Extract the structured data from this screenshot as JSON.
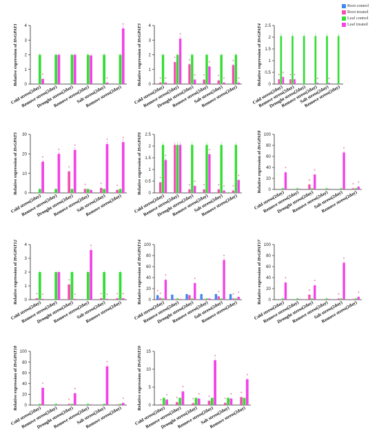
{
  "colors": {
    "root_control": "#3f86f0",
    "root_treated": "#f24fb0",
    "leaf_control": "#33dd33",
    "leaf_treated": "#f342e6",
    "star": "#d0357d",
    "axis": "#222222"
  },
  "legend": {
    "items": [
      {
        "label": "Root control",
        "color": "#3f86f0"
      },
      {
        "label": "Root treated",
        "color": "#f24fb0"
      },
      {
        "label": "Leaf control",
        "color": "#33dd33"
      },
      {
        "label": "Leaf treated",
        "color": "#f342e6"
      }
    ]
  },
  "chart_data": [
    {
      "type": "bar",
      "ylabel_prefix": "Relative expression of ",
      "gene": "HvGPAT1",
      "categories": [
        "Cold stress(2day)",
        "Remove stress(2day)",
        "Drought stress(2day)",
        "Remove stress(2day)",
        "Salt stress(2day)",
        "Remove stress(2day)"
      ],
      "ylim": [
        0,
        4
      ],
      "yticks": [
        0,
        1,
        2,
        3,
        4
      ],
      "series": [
        {
          "values": [
            0,
            0,
            0,
            0,
            0,
            0
          ],
          "star": [
            false,
            false,
            false,
            false,
            false,
            false
          ]
        },
        {
          "values": [
            0,
            0,
            0,
            0,
            0,
            0
          ],
          "star": [
            false,
            false,
            false,
            false,
            false,
            false
          ]
        },
        {
          "values": [
            2,
            2,
            2,
            2,
            2,
            2
          ],
          "star": [
            false,
            false,
            false,
            false,
            false,
            false
          ]
        },
        {
          "values": [
            0.35,
            2.0,
            2.0,
            1.95,
            0.1,
            3.8
          ],
          "star": [
            true,
            false,
            false,
            false,
            true,
            true
          ]
        }
      ]
    },
    {
      "type": "bar",
      "ylabel_prefix": "Relative expression of ",
      "gene": "HvGPAT3",
      "categories": [
        "Cold stress(2day)",
        "Remove stress(2day)",
        "Drought stress(2day)",
        "Remove stress(2day)",
        "Salt stress(2day)",
        "Remove stress(2day)"
      ],
      "ylim": [
        0,
        4
      ],
      "yticks": [
        0,
        1,
        2,
        3,
        4
      ],
      "series": [
        {
          "values": [
            0,
            0,
            0,
            0,
            0,
            0
          ],
          "star": [
            false,
            false,
            false,
            false,
            false,
            false
          ]
        },
        {
          "values": [
            0.1,
            1.5,
            1.35,
            0.3,
            0.25,
            1.3
          ],
          "star": [
            true,
            true,
            true,
            true,
            true,
            true
          ]
        },
        {
          "values": [
            2,
            2,
            2,
            2,
            2,
            2
          ],
          "star": [
            false,
            false,
            false,
            false,
            false,
            false
          ]
        },
        {
          "values": [
            0.1,
            3.1,
            0.3,
            1.2,
            0.1,
            0.1
          ],
          "star": [
            true,
            true,
            true,
            true,
            true,
            true
          ]
        }
      ]
    },
    {
      "type": "bar",
      "ylabel_prefix": "Relative expression of ",
      "gene": "HvGPAT4",
      "categories": [
        "Cold stress(2day)",
        "Remove stress(2day)",
        "Drought stress(2day)",
        "Remove stress(2day)",
        "Salt stress(2day)",
        "Remove stress(2day)"
      ],
      "ylim": [
        0,
        2.5
      ],
      "yticks": [
        0,
        0.5,
        1.0,
        1.5,
        2.0,
        2.5
      ],
      "series": [
        {
          "values": [
            0,
            0,
            0,
            0,
            0,
            0
          ],
          "star": [
            false,
            false,
            false,
            false,
            false,
            false
          ]
        },
        {
          "values": [
            0.2,
            0.2,
            0,
            0,
            0,
            0
          ],
          "star": [
            true,
            true,
            false,
            false,
            false,
            false
          ]
        },
        {
          "values": [
            2.05,
            2.05,
            2.05,
            2.05,
            2.05,
            2.05
          ],
          "star": [
            false,
            false,
            false,
            false,
            false,
            false
          ]
        },
        {
          "values": [
            0.3,
            0.2,
            0,
            0.05,
            0.05,
            0
          ],
          "star": [
            true,
            true,
            false,
            true,
            true,
            false
          ]
        }
      ]
    },
    {
      "type": "bar",
      "ylabel_prefix": "Relative expression of ",
      "gene": "HvGPAT5",
      "categories": [
        "Cold stress(2day)",
        "Remove stress(2day)",
        "Drought stress(2day)",
        "Remove stress(2day)",
        "Salt stress(2day)",
        "Remove stress(2day)"
      ],
      "ylim": [
        0,
        30
      ],
      "yticks": [
        0,
        10,
        20,
        30
      ],
      "series": [
        {
          "values": [
            0,
            0,
            0,
            0,
            0,
            0
          ],
          "star": [
            false,
            false,
            false,
            false,
            false,
            false
          ]
        },
        {
          "values": [
            0,
            0,
            11,
            2,
            2.5,
            1.5
          ],
          "star": [
            false,
            false,
            true,
            true,
            true,
            true
          ]
        },
        {
          "values": [
            2,
            2,
            2,
            2,
            2,
            2
          ],
          "star": [
            false,
            false,
            false,
            false,
            false,
            false
          ]
        },
        {
          "values": [
            16,
            20,
            22,
            1.5,
            25,
            26
          ],
          "star": [
            true,
            true,
            true,
            false,
            true,
            true
          ]
        }
      ]
    },
    {
      "type": "bar",
      "ylabel_prefix": "Relative expression of ",
      "gene": "HvGPAT6",
      "categories": [
        "Cold stress(2day)",
        "Remove stress(2day)",
        "Drought stress(2day)",
        "Remove stress(2day)",
        "Salt stress(2day)",
        "Remove stress(2day)"
      ],
      "ylim": [
        0,
        2.5
      ],
      "yticks": [
        0,
        0.5,
        1.0,
        1.5,
        2.0,
        2.5
      ],
      "series": [
        {
          "values": [
            0,
            0,
            0,
            0,
            0,
            0
          ],
          "star": [
            false,
            false,
            false,
            false,
            false,
            false
          ]
        },
        {
          "values": [
            0.45,
            2.05,
            0.15,
            0.15,
            0.15,
            0.1
          ],
          "star": [
            true,
            false,
            true,
            true,
            true,
            true
          ]
        },
        {
          "values": [
            2.05,
            2.05,
            2.05,
            2.05,
            2.05,
            2.05
          ],
          "star": [
            false,
            false,
            false,
            false,
            false,
            false
          ]
        },
        {
          "values": [
            1.4,
            2.05,
            0.3,
            1.65,
            0.1,
            0.55
          ],
          "star": [
            true,
            false,
            true,
            true,
            true,
            true
          ]
        }
      ]
    },
    {
      "type": "bar",
      "ylabel_prefix": "Relative expression of ",
      "gene": "HvGPAT8",
      "categories": [
        "Cold stress(2day)",
        "Remove stress(2day)",
        "Drought stress(2day)",
        "Remove stress(2day)",
        "Salt stress(2day)",
        "Remove stress(2day)"
      ],
      "ylim": [
        0,
        100
      ],
      "yticks": [
        0,
        20,
        40,
        60,
        80,
        100
      ],
      "series": [
        {
          "values": [
            0,
            0,
            0,
            0,
            0,
            0
          ],
          "star": [
            false,
            false,
            false,
            false,
            false,
            false
          ]
        },
        {
          "values": [
            0,
            0,
            9,
            0,
            0,
            2
          ],
          "star": [
            false,
            false,
            true,
            false,
            false,
            true
          ]
        },
        {
          "values": [
            2,
            2,
            2,
            2,
            2,
            2
          ],
          "star": [
            false,
            false,
            false,
            false,
            false,
            false
          ]
        },
        {
          "values": [
            31,
            1,
            27,
            1,
            67,
            5
          ],
          "star": [
            true,
            false,
            true,
            false,
            true,
            true
          ]
        }
      ]
    },
    {
      "type": "bar",
      "ylabel_prefix": "Relative expression of ",
      "gene": "HvGPAT12",
      "categories": [
        "Cold stress(2day)",
        "Remove stress(2day)",
        "Drought stress(2day)",
        "Remove stress(2day)",
        "Salt stress(2day)",
        "Remove stress(2day)"
      ],
      "ylim": [
        0,
        4
      ],
      "yticks": [
        0,
        1,
        2,
        3,
        4
      ],
      "series": [
        {
          "values": [
            0,
            0,
            0,
            0,
            0,
            0
          ],
          "star": [
            false,
            false,
            false,
            false,
            false,
            false
          ]
        },
        {
          "values": [
            0.1,
            0,
            1.1,
            0,
            0.1,
            0.1
          ],
          "star": [
            true,
            false,
            true,
            false,
            true,
            true
          ]
        },
        {
          "values": [
            2,
            2,
            2,
            2,
            2,
            2
          ],
          "star": [
            false,
            false,
            false,
            false,
            false,
            false
          ]
        },
        {
          "values": [
            0.05,
            2.0,
            0.05,
            3.6,
            0.05,
            0.1
          ],
          "star": [
            true,
            false,
            true,
            true,
            true,
            true
          ]
        }
      ]
    },
    {
      "type": "bar",
      "ylabel_prefix": "Relative expression of ",
      "gene": "HvGPAT14",
      "categories": [
        "Cold stress(2day)",
        "Remove stress(2day)",
        "Drought stress(2day)",
        "Remove stress(2day)",
        "Salt stress(2day)",
        "Remove stress(2day)"
      ],
      "ylim": [
        0,
        100
      ],
      "yticks": [
        0,
        20,
        40,
        60,
        80,
        100
      ],
      "series": [
        {
          "values": [
            8,
            9,
            10,
            10,
            10,
            10
          ],
          "star": [
            true,
            false,
            false,
            false,
            false,
            false
          ]
        },
        {
          "values": [
            3,
            1,
            8,
            1,
            6,
            2
          ],
          "star": [
            true,
            false,
            false,
            false,
            true,
            true
          ]
        },
        {
          "values": [
            2,
            2,
            2,
            2,
            2,
            2
          ],
          "star": [
            false,
            false,
            false,
            false,
            false,
            false
          ]
        },
        {
          "values": [
            36,
            1,
            30,
            2,
            72,
            5
          ],
          "star": [
            true,
            false,
            true,
            false,
            true,
            true
          ]
        }
      ]
    },
    {
      "type": "bar",
      "ylabel_prefix": "Relative expression of ",
      "gene": "HvGPAT17",
      "categories": [
        "Cold stress(2day)",
        "Remove stress(2day)",
        "Drought stress(2day)",
        "Remove stress(2day)",
        "Salt stress(2day)",
        "Remove stress(2day)"
      ],
      "ylim": [
        0,
        100
      ],
      "yticks": [
        0,
        20,
        40,
        60,
        80,
        100
      ],
      "series": [
        {
          "values": [
            0,
            0,
            0,
            0,
            0,
            0
          ],
          "star": [
            false,
            false,
            false,
            false,
            false,
            false
          ]
        },
        {
          "values": [
            0,
            0,
            9,
            0,
            2,
            1
          ],
          "star": [
            false,
            false,
            true,
            false,
            true,
            false
          ]
        },
        {
          "values": [
            2,
            2,
            2,
            2,
            2,
            2
          ],
          "star": [
            false,
            false,
            false,
            false,
            false,
            false
          ]
        },
        {
          "values": [
            31,
            1,
            26,
            1,
            67,
            5
          ],
          "star": [
            true,
            false,
            true,
            false,
            true,
            true
          ]
        }
      ]
    },
    {
      "type": "bar",
      "ylabel_prefix": "Relative expression of ",
      "gene": "HvGPAT18",
      "categories": [
        "Cold stress(2day)",
        "Remove stress(2day)",
        "Drought stress(2day)",
        "Remove stress(2day)",
        "Salt stress(2day)",
        "Remove stress(2day)"
      ],
      "ylim": [
        0,
        100
      ],
      "yticks": [
        0,
        20,
        40,
        60,
        80,
        100
      ],
      "series": [
        {
          "values": [
            0,
            0,
            0,
            0,
            0,
            0
          ],
          "star": [
            false,
            false,
            false,
            false,
            false,
            false
          ]
        },
        {
          "values": [
            0,
            0,
            2,
            0,
            0,
            1
          ],
          "star": [
            false,
            false,
            true,
            false,
            false,
            false
          ]
        },
        {
          "values": [
            2,
            2,
            2,
            2,
            2,
            2
          ],
          "star": [
            false,
            false,
            false,
            false,
            false,
            false
          ]
        },
        {
          "values": [
            32,
            1,
            22,
            1,
            72,
            4
          ],
          "star": [
            true,
            false,
            true,
            false,
            true,
            true
          ]
        }
      ]
    },
    {
      "type": "bar",
      "ylabel_prefix": "Relative expression of ",
      "gene": "HvGPAT20",
      "categories": [
        "Cold stress(2day)",
        "Remove stress(2day)",
        "Drought stress(2day)",
        "Remove stress(2day)",
        "Salt stress(2day)",
        "Remove stress(2day)"
      ],
      "ylim": [
        0,
        15
      ],
      "yticks": [
        0,
        5,
        10,
        15
      ],
      "series": [
        {
          "values": [
            0,
            0,
            0,
            0,
            0,
            0
          ],
          "star": [
            false,
            false,
            false,
            false,
            false,
            false
          ]
        },
        {
          "values": [
            0.2,
            0.8,
            0.5,
            1.2,
            0.6,
            2.2
          ],
          "star": [
            true,
            true,
            true,
            true,
            true,
            true
          ]
        },
        {
          "values": [
            2,
            2,
            2,
            2,
            2,
            2
          ],
          "star": [
            false,
            false,
            false,
            false,
            false,
            false
          ]
        },
        {
          "values": [
            1.5,
            3.8,
            1.8,
            12.5,
            1.8,
            7.2
          ],
          "star": [
            true,
            true,
            true,
            true,
            true,
            true
          ]
        }
      ]
    }
  ]
}
